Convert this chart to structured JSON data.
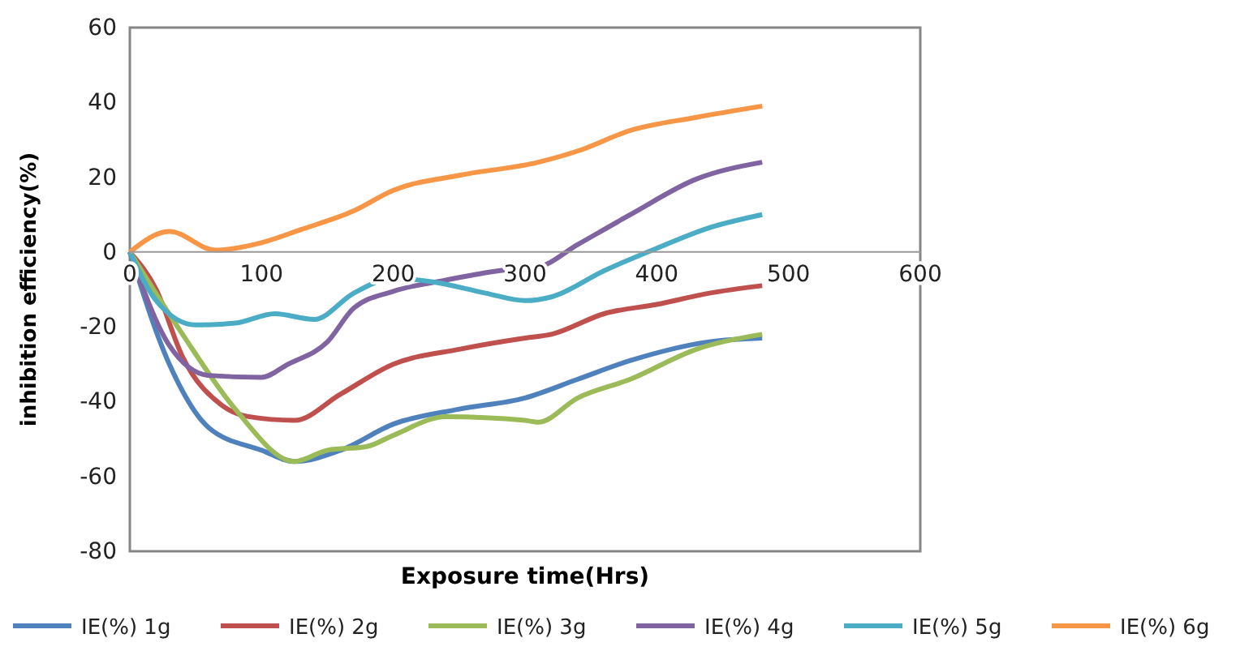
{
  "chart_data": {
    "type": "line",
    "xlabel": "Exposure time(Hrs)",
    "ylabel": "inhibition efficiency(%)",
    "xlim": [
      0,
      600
    ],
    "xticks": [
      0,
      100,
      200,
      300,
      400,
      500,
      600
    ],
    "ylim": [
      -80,
      60
    ],
    "yticks": [
      -80,
      -60,
      -40,
      -20,
      0,
      20,
      40,
      60
    ],
    "grid": false,
    "legend": "bottom",
    "marker": "none",
    "line_style": "solid",
    "series": [
      {
        "name": "IE(%) 1g",
        "color": "#4f81bd",
        "x": [
          0,
          30,
          60,
          100,
          125,
          160,
          200,
          250,
          300,
          340,
          380,
          440,
          480
        ],
        "values": [
          0,
          -30,
          -47,
          -53,
          -56,
          -53,
          -46,
          -42,
          -39,
          -34,
          -29,
          -24,
          -23
        ]
      },
      {
        "name": "IE(%) 2g",
        "color": "#c0504d",
        "x": [
          0,
          20,
          40,
          70,
          90,
          125,
          160,
          200,
          250,
          300,
          320,
          360,
          400,
          440,
          480
        ],
        "values": [
          0,
          -10,
          -28,
          -41,
          -44,
          -45,
          -38,
          -30,
          -26,
          -23,
          -22,
          -16.5,
          -14,
          -11,
          -9
        ]
      },
      {
        "name": "IE(%) 3g",
        "color": "#9bbb59",
        "x": [
          0,
          40,
          80,
          125,
          150,
          180,
          200,
          240,
          300,
          310,
          340,
          380,
          430,
          480
        ],
        "values": [
          0,
          -22,
          -42,
          -56,
          -53,
          -52,
          -49,
          -44,
          -45,
          -45.5,
          -39,
          -34,
          -26,
          -22
        ]
      },
      {
        "name": "IE(%) 4g",
        "color": "#8064a2",
        "x": [
          0,
          30,
          60,
          100,
          120,
          150,
          170,
          200,
          240,
          280,
          310,
          340,
          380,
          430,
          480
        ],
        "values": [
          0,
          -25,
          -33,
          -33.5,
          -30,
          -24,
          -15,
          -10.5,
          -7.5,
          -5,
          -4,
          2,
          10,
          19.5,
          24
        ]
      },
      {
        "name": "IE(%) 5g",
        "color": "#4bacc6",
        "x": [
          0,
          20,
          50,
          80,
          110,
          140,
          170,
          200,
          230,
          270,
          300,
          320,
          360,
          400,
          440,
          480
        ],
        "values": [
          0,
          -13,
          -19.5,
          -19,
          -16.5,
          -18,
          -11,
          -7,
          -8,
          -11,
          -13,
          -12,
          -5,
          1,
          6.5,
          10
        ]
      },
      {
        "name": "IE(%) 6g",
        "color": "#f79646",
        "x": [
          0,
          30,
          65,
          100,
          130,
          170,
          200,
          250,
          310,
          340,
          380,
          430,
          480
        ],
        "values": [
          0,
          5.5,
          0.5,
          2.5,
          6,
          11,
          16.5,
          20.5,
          24,
          27,
          32.5,
          36,
          39
        ]
      }
    ]
  }
}
